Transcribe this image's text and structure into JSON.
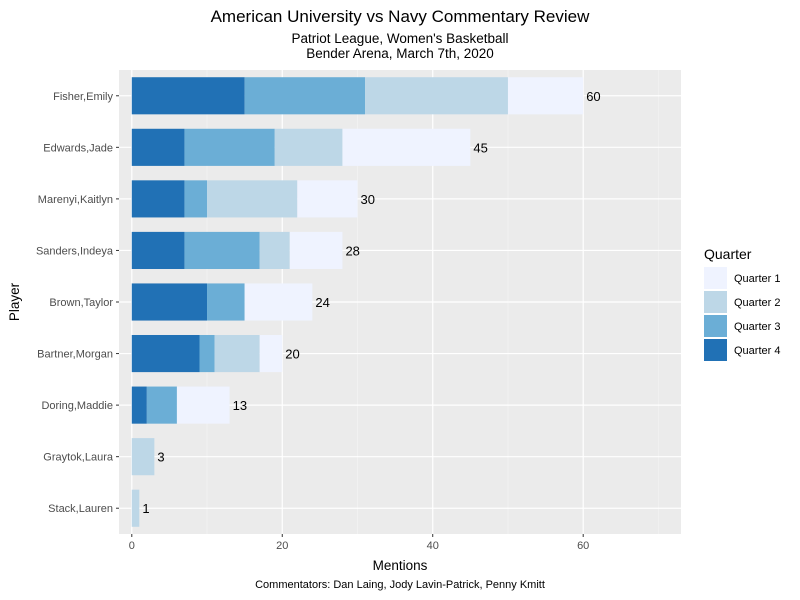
{
  "chart_data": {
    "type": "bar",
    "orientation": "horizontal",
    "stacked": true,
    "title": "American University vs Navy Commentary Review",
    "subtitle_lines": [
      "Patriot League, Women's Basketball",
      "Bender Arena, March 7th, 2020"
    ],
    "caption": "Commentators: Dan Laing, Jody Lavin-Patrick, Penny Kmitt",
    "xlabel": "Mentions",
    "ylabel": "Player",
    "xlim": [
      -1.7,
      73
    ],
    "x_ticks": [
      0,
      20,
      40,
      60
    ],
    "grid": true,
    "legend": {
      "title": "Quarter",
      "position": "right"
    },
    "categories": [
      "Fisher,Emily",
      "Edwards,Jade",
      "Marenyi,Kaitlyn",
      "Sanders,Indeya",
      "Brown,Taylor",
      "Bartner,Morgan",
      "Doring,Maddie",
      "Graytok,Laura",
      "Stack,Lauren"
    ],
    "totals": [
      60,
      45,
      30,
      28,
      24,
      20,
      13,
      3,
      1
    ],
    "series": [
      {
        "name": "Quarter 4",
        "color": "#2171b5",
        "values": [
          15,
          7,
          7,
          7,
          10,
          9,
          2,
          0,
          0
        ]
      },
      {
        "name": "Quarter 3",
        "color": "#6baed6",
        "values": [
          16,
          12,
          3,
          10,
          5,
          2,
          4,
          0,
          0
        ]
      },
      {
        "name": "Quarter 2",
        "color": "#bdd7e7",
        "values": [
          19,
          9,
          12,
          4,
          0,
          6,
          0,
          3,
          1
        ]
      },
      {
        "name": "Quarter 1",
        "color": "#eff3ff",
        "values": [
          10,
          17,
          8,
          7,
          9,
          3,
          7,
          0,
          0
        ]
      }
    ],
    "legend_order": [
      "Quarter 1",
      "Quarter 2",
      "Quarter 3",
      "Quarter 4"
    ]
  }
}
